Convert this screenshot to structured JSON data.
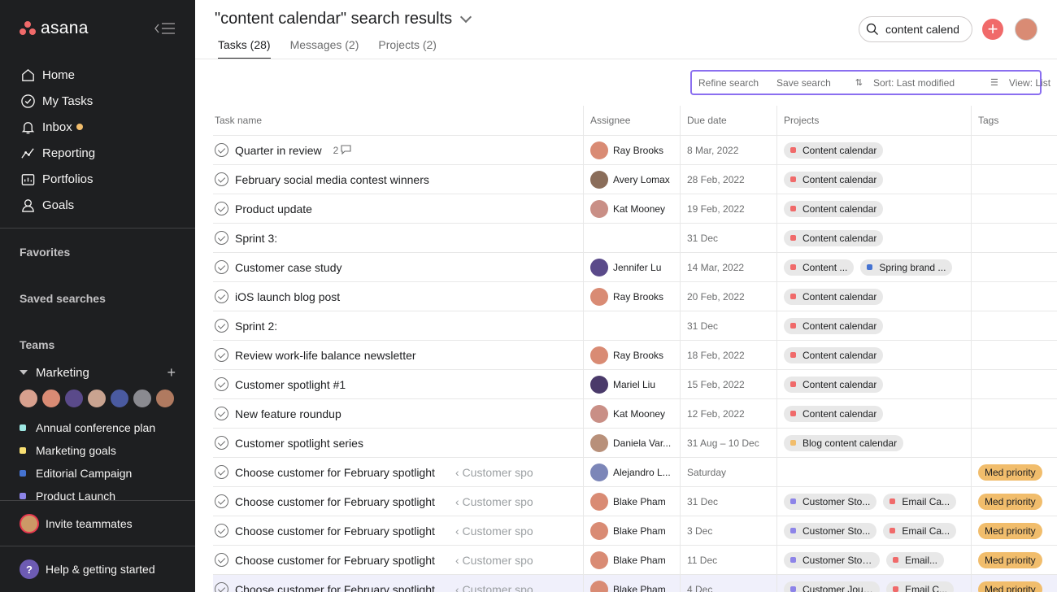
{
  "sidebar": {
    "logo": "asana",
    "nav": [
      {
        "label": "Home",
        "icon": "home-icon"
      },
      {
        "label": "My Tasks",
        "icon": "check-circle-icon"
      },
      {
        "label": "Inbox",
        "icon": "bell-icon"
      },
      {
        "label": "Reporting",
        "icon": "chart-line-icon"
      },
      {
        "label": "Portfolios",
        "icon": "folder-icon"
      },
      {
        "label": "Goals",
        "icon": "person-icon"
      }
    ],
    "favorites": "Favorites",
    "saved_searches": "Saved searches",
    "teams": "Teams",
    "team_name": "Marketing",
    "projects": [
      {
        "label": "Annual conference plan",
        "color": "#9ee7e3"
      },
      {
        "label": "Marketing goals",
        "color": "#f8df72"
      },
      {
        "label": "Editorial Campaign",
        "color": "#4573d2"
      },
      {
        "label": "Product Launch",
        "color": "#8d84e8"
      }
    ],
    "invite": "Invite teammates",
    "help": "Help & getting started"
  },
  "header": {
    "title": "\"content calendar\" search results",
    "tabs": [
      "Tasks (28)",
      "Messages (2)",
      "Projects (2)"
    ],
    "search_value": "content calendar"
  },
  "toolbar": {
    "refine": "Refine search",
    "save": "Save search",
    "sort": "Sort: Last modified",
    "view": "View: List"
  },
  "columns": {
    "task": "Task name",
    "assignee": "Assignee",
    "due": "Due date",
    "projects": "Projects",
    "tags": "Tags"
  },
  "rows": [
    {
      "task": "Quarter in review",
      "comments": "2",
      "assignee": "Ray Brooks",
      "av": "#d98b74",
      "due": "8 Mar, 2022",
      "projects": [
        {
          "name": "Content calendar",
          "color": "#f06a6a"
        }
      ],
      "tag": ""
    },
    {
      "task": "February social media contest winners",
      "assignee": "Avery Lomax",
      "av": "#8a6d5a",
      "due": "28 Feb, 2022",
      "projects": [
        {
          "name": "Content calendar",
          "color": "#f06a6a"
        }
      ],
      "tag": ""
    },
    {
      "task": "Product update",
      "assignee": "Kat Mooney",
      "av": "#c98f86",
      "due": "19 Feb, 2022",
      "projects": [
        {
          "name": "Content calendar",
          "color": "#f06a6a"
        }
      ],
      "tag": ""
    },
    {
      "task": "Sprint 3:",
      "assignee": "",
      "av": "",
      "due": "31 Dec",
      "projects": [
        {
          "name": "Content calendar",
          "color": "#f06a6a"
        }
      ],
      "tag": ""
    },
    {
      "task": "Customer case study",
      "assignee": "Jennifer Lu",
      "av": "#5a4a8a",
      "due": "14 Mar, 2022",
      "projects": [
        {
          "name": "Content ...",
          "color": "#f06a6a"
        },
        {
          "name": "Spring brand ...",
          "color": "#4573d2"
        }
      ],
      "tag": ""
    },
    {
      "task": "iOS launch blog post",
      "assignee": "Ray Brooks",
      "av": "#d98b74",
      "due": "20 Feb, 2022",
      "projects": [
        {
          "name": "Content calendar",
          "color": "#f06a6a"
        }
      ],
      "tag": ""
    },
    {
      "task": "Sprint 2:",
      "assignee": "",
      "av": "",
      "due": "31 Dec",
      "projects": [
        {
          "name": "Content calendar",
          "color": "#f06a6a"
        }
      ],
      "tag": ""
    },
    {
      "task": "Review work-life balance newsletter",
      "assignee": "Ray Brooks",
      "av": "#d98b74",
      "due": "18 Feb, 2022",
      "projects": [
        {
          "name": "Content calendar",
          "color": "#f06a6a"
        }
      ],
      "tag": ""
    },
    {
      "task": "Customer spotlight #1",
      "assignee": "Mariel Liu",
      "av": "#4a3a6a",
      "due": "15 Feb, 2022",
      "projects": [
        {
          "name": "Content calendar",
          "color": "#f06a6a"
        }
      ],
      "tag": ""
    },
    {
      "task": "New feature roundup",
      "assignee": "Kat Mooney",
      "av": "#c98f86",
      "due": "12 Feb, 2022",
      "projects": [
        {
          "name": "Content calendar",
          "color": "#f06a6a"
        }
      ],
      "tag": ""
    },
    {
      "task": "Customer spotlight series",
      "assignee": "Daniela Var...",
      "av": "#b8907a",
      "due": "31 Aug – 10 Dec",
      "projects": [
        {
          "name": "Blog content calendar",
          "color": "#f1bd6c"
        }
      ],
      "tag": ""
    },
    {
      "task": "Choose customer for February spotlight",
      "parent": "‹ Customer spo",
      "assignee": "Alejandro L...",
      "av": "#7c86b8",
      "due": "Saturday",
      "projects": [],
      "tag": "Med priority"
    },
    {
      "task": "Choose customer for February spotlight",
      "parent": "‹ Customer spo",
      "assignee": "Blake Pham",
      "av": "#d98b74",
      "due": "31 Dec",
      "projects": [
        {
          "name": "Customer Sto...",
          "color": "#8d84e8"
        },
        {
          "name": "Email Ca...",
          "color": "#f06a6a"
        }
      ],
      "tag": "Med priority"
    },
    {
      "task": "Choose customer for February spotlight",
      "parent": "‹ Customer spo",
      "assignee": "Blake Pham",
      "av": "#d98b74",
      "due": "3 Dec",
      "projects": [
        {
          "name": "Customer Sto...",
          "color": "#8d84e8"
        },
        {
          "name": "Email Ca...",
          "color": "#f06a6a"
        }
      ],
      "tag": "Med priority"
    },
    {
      "task": "Choose customer for February spotlight",
      "parent": "‹ Customer spo",
      "assignee": "Blake Pham",
      "av": "#d98b74",
      "due": "11 Dec",
      "projects": [
        {
          "name": "Customer Stories...",
          "color": "#8d84e8"
        },
        {
          "name": "Email...",
          "color": "#f06a6a"
        }
      ],
      "tag": "Med priority"
    },
    {
      "task": "Choose customer for February spotlight",
      "parent": "‹ Customer spo",
      "assignee": "Blake Pham",
      "av": "#d98b74",
      "due": "4 Dec",
      "projects": [
        {
          "name": "Customer Jour...",
          "color": "#8d84e8"
        },
        {
          "name": "Email C...",
          "color": "#f06a6a"
        }
      ],
      "tag": "Med priority",
      "highlight": true
    }
  ]
}
